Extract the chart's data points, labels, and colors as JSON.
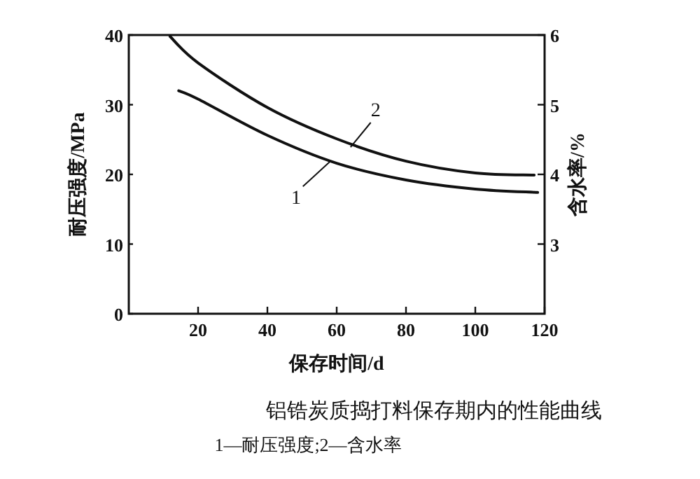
{
  "chart_data": {
    "type": "line",
    "title": "铝锆炭质捣打料保存期内的性能曲线",
    "subtitle": "1—耐压强度;2—含水率",
    "xlabel": "保存时间/d",
    "ylabel": "耐压强度/MPa",
    "y2label": "含水率/%",
    "xlim": [
      0,
      120
    ],
    "xticks": [
      20,
      40,
      60,
      80,
      100,
      120
    ],
    "ylim": [
      0,
      40
    ],
    "yticks": [
      0,
      10,
      20,
      30,
      40
    ],
    "y2lim": [
      2,
      6
    ],
    "y2ticks": [
      3,
      4,
      5,
      6
    ],
    "series": [
      {
        "color": "#111111",
        "x": [
          14.4,
          20,
          40,
          60,
          80,
          100,
          118
        ],
        "values": [
          32,
          30.8,
          25.6,
          21.6,
          19.2,
          17.9,
          17.4
        ]
      },
      {
        "color": "#111111",
        "axis": "y2",
        "x": [
          11.9,
          20,
          40,
          60,
          80,
          100,
          117
        ],
        "values": [
          5.98,
          5.6,
          4.96,
          4.51,
          4.19,
          4.02,
          3.99
        ]
      }
    ],
    "annotations": [
      {
        "text": "1",
        "x": 58,
        "y": 21.8
      },
      {
        "text": "2",
        "x": 64,
        "y": 23.9
      }
    ],
    "grid": false
  }
}
